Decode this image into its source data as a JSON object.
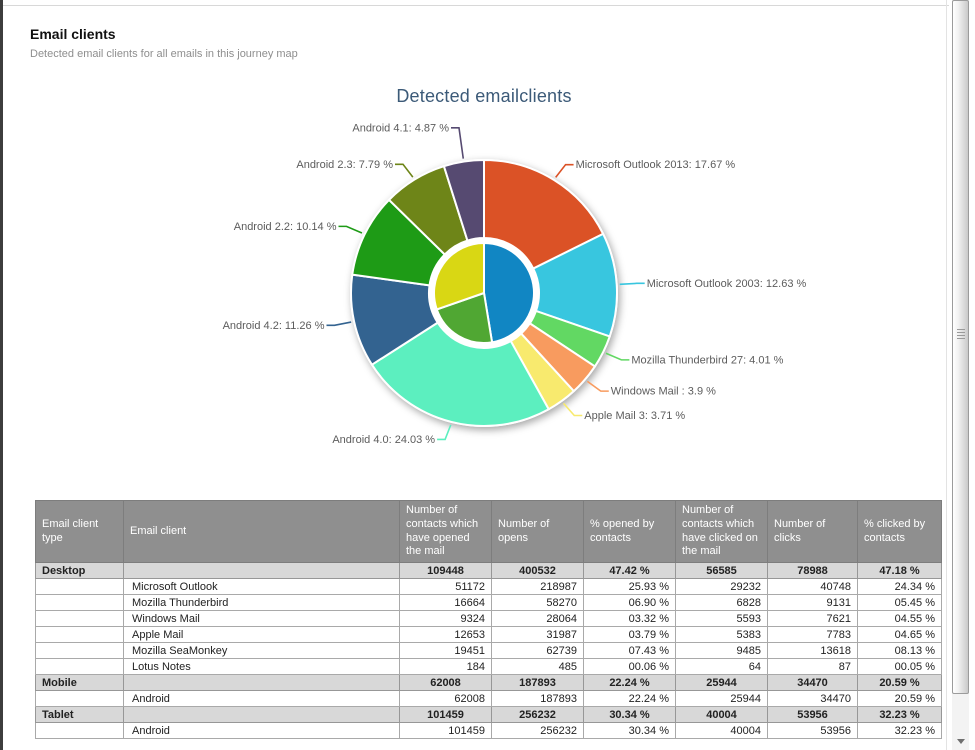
{
  "page": {
    "title": "Email clients",
    "subtitle": "Detected email clients for all emails in this journey map"
  },
  "chart_data": {
    "type": "pie",
    "title": "Detected emailclients",
    "legend": "none",
    "description": "Two-level donut: outer ring = detected email clients (%), inner pie = email client type share (%)",
    "outer_ring": {
      "slices": [
        {
          "label": "Microsoft Outlook 2013: 17.67 %",
          "name": "Microsoft Outlook 2013",
          "value": 17.67,
          "color": "#DB5226"
        },
        {
          "label": "Microsoft Outlook 2003: 12.63 %",
          "name": "Microsoft Outlook 2003",
          "value": 12.63,
          "color": "#38C6DF"
        },
        {
          "label": "Mozilla Thunderbird 27: 4.01 %",
          "name": "Mozilla Thunderbird 27",
          "value": 4.01,
          "color": "#62D863"
        },
        {
          "label": "Windows Mail : 3.9 %",
          "name": "Windows Mail",
          "value": 3.9,
          "color": "#F89B5F"
        },
        {
          "label": "Apple Mail 3: 3.71 %",
          "name": "Apple Mail 3",
          "value": 3.71,
          "color": "#F8EA6E"
        },
        {
          "label": "Android 4.0: 24.03 %",
          "name": "Android 4.0",
          "value": 24.03,
          "color": "#5CEFBF"
        },
        {
          "label": "Android 4.2: 11.26 %",
          "name": "Android 4.2",
          "value": 11.26,
          "color": "#336390"
        },
        {
          "label": "Android 2.2: 10.14 %",
          "name": "Android 2.2",
          "value": 10.14,
          "color": "#1E9B16"
        },
        {
          "label": "Android 2.3: 7.79 %",
          "name": "Android 2.3",
          "value": 7.79,
          "color": "#6E8518"
        },
        {
          "label": "Android 4.1: 4.87 %",
          "name": "Android 4.1",
          "value": 4.87,
          "color": "#564A71"
        }
      ]
    },
    "inner_pie": {
      "slices": [
        {
          "name": "Desktop",
          "value": 47.42,
          "color": "#1186C3"
        },
        {
          "name": "Mobile",
          "value": 22.24,
          "color": "#50A733"
        },
        {
          "name": "Tablet",
          "value": 30.34,
          "color": "#D9D714"
        }
      ]
    }
  },
  "table": {
    "columns": [
      "Email client type",
      "Email client",
      "Number of contacts which have opened the mail",
      "Number of opens",
      "% opened by contacts",
      "Number of contacts which have clicked on the mail",
      "Number of clicks",
      "% clicked by contacts"
    ],
    "rows": [
      {
        "type": "group",
        "cells": [
          "Desktop",
          "",
          "109448",
          "400532",
          "47.42 %",
          "56585",
          "78988",
          "47.18 %"
        ]
      },
      {
        "type": "detail",
        "cells": [
          "",
          "Microsoft Outlook",
          "51172",
          "218987",
          "25.93 %",
          "29232",
          "40748",
          "24.34 %"
        ]
      },
      {
        "type": "detail",
        "cells": [
          "",
          "Mozilla Thunderbird",
          "16664",
          "58270",
          "06.90 %",
          "6828",
          "9131",
          "05.45 %"
        ]
      },
      {
        "type": "detail",
        "cells": [
          "",
          "Windows Mail",
          "9324",
          "28064",
          "03.32 %",
          "5593",
          "7621",
          "04.55 %"
        ]
      },
      {
        "type": "detail",
        "cells": [
          "",
          "Apple Mail",
          "12653",
          "31987",
          "03.79 %",
          "5383",
          "7783",
          "04.65 %"
        ]
      },
      {
        "type": "detail",
        "cells": [
          "",
          "Mozilla SeaMonkey",
          "19451",
          "62739",
          "07.43 %",
          "9485",
          "13618",
          "08.13 %"
        ]
      },
      {
        "type": "detail",
        "cells": [
          "",
          "Lotus Notes",
          "184",
          "485",
          "00.06 %",
          "64",
          "87",
          "00.05 %"
        ]
      },
      {
        "type": "group",
        "cells": [
          "Mobile",
          "",
          "62008",
          "187893",
          "22.24 %",
          "25944",
          "34470",
          "20.59 %"
        ]
      },
      {
        "type": "detail",
        "cells": [
          "",
          "Android",
          "62008",
          "187893",
          "22.24 %",
          "25944",
          "34470",
          "20.59 %"
        ]
      },
      {
        "type": "group",
        "cells": [
          "Tablet",
          "",
          "101459",
          "256232",
          "30.34 %",
          "40004",
          "53956",
          "32.23 %"
        ]
      },
      {
        "type": "detail",
        "cells": [
          "",
          "Android",
          "101459",
          "256232",
          "30.34 %",
          "40004",
          "53956",
          "32.23 %"
        ]
      }
    ]
  }
}
